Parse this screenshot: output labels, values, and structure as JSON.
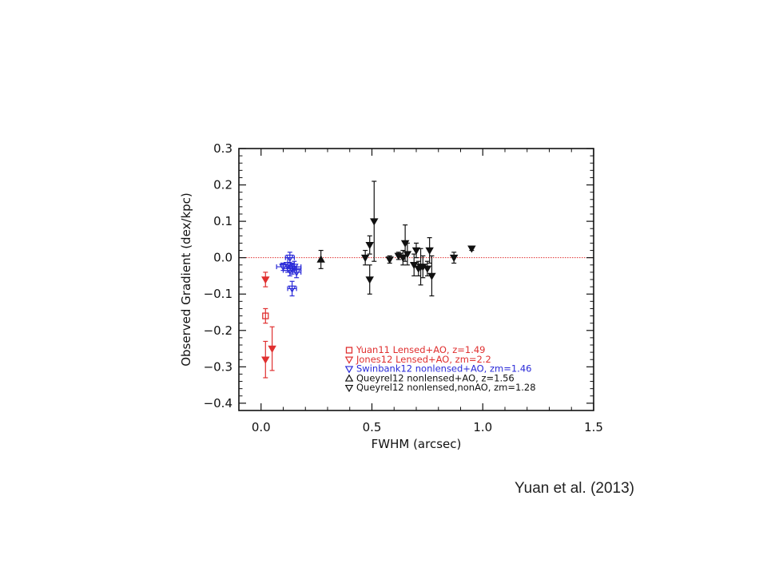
{
  "citation": "Yuan et al. (2013)",
  "chart_data": {
    "type": "scatter",
    "xlabel": "FWHM (arcsec)",
    "ylabel": "Observed Gradient (dex/kpc)",
    "xlim": [
      -0.1,
      1.5
    ],
    "ylim": [
      -0.42,
      0.3
    ],
    "x_ticks": [
      0.0,
      0.5,
      1.0,
      1.5
    ],
    "x_tick_labels": [
      "0.0",
      "0.5",
      "1.0",
      "1.5"
    ],
    "y_ticks": [
      -0.4,
      -0.3,
      -0.2,
      -0.1,
      0.0,
      0.1,
      0.2,
      0.3
    ],
    "y_tick_labels": [
      "−0.4",
      "−0.3",
      "−0.2",
      "−0.1",
      "0.0",
      "0.1",
      "0.2",
      "0.3"
    ],
    "reference_line": {
      "y": 0.0,
      "style": "dotted",
      "color": "#e03030"
    },
    "legend_placement": "lower-right",
    "series": [
      {
        "name": "Yuan11 Lensed+AO, z=1.49",
        "color": "#e03030",
        "marker": "square-open",
        "points": [
          {
            "x": 0.02,
            "y": -0.16,
            "yerr": 0.02,
            "xerr": 0
          }
        ]
      },
      {
        "name": "Jones12 Lensed+AO, zm=2.2",
        "color": "#e03030",
        "marker": "triangle-down-filled",
        "points": [
          {
            "x": 0.02,
            "y": -0.06,
            "yerr": 0.02,
            "xerr": 0
          },
          {
            "x": 0.02,
            "y": -0.28,
            "yerr": 0.05,
            "xerr": 0
          },
          {
            "x": 0.05,
            "y": -0.25,
            "yerr": 0.06,
            "xerr": 0
          }
        ]
      },
      {
        "name": "Swinbank12 nonlensed+AO, zm=1.46",
        "color": "#2a2ad8",
        "marker": "triangle-down-open",
        "points": [
          {
            "x": 0.13,
            "y": 0.0,
            "yerr": 0.015,
            "xerr": 0.02
          },
          {
            "x": 0.12,
            "y": -0.02,
            "yerr": 0.02,
            "xerr": 0.03
          },
          {
            "x": 0.15,
            "y": -0.025,
            "yerr": 0.015,
            "xerr": 0.03
          },
          {
            "x": 0.14,
            "y": -0.03,
            "yerr": 0.015,
            "xerr": 0.04
          },
          {
            "x": 0.13,
            "y": -0.035,
            "yerr": 0.015,
            "xerr": 0.03
          },
          {
            "x": 0.1,
            "y": -0.025,
            "yerr": 0.01,
            "xerr": 0.03
          },
          {
            "x": 0.16,
            "y": -0.04,
            "yerr": 0.015,
            "xerr": 0.02
          },
          {
            "x": 0.14,
            "y": -0.085,
            "yerr": 0.02,
            "xerr": 0.02
          }
        ]
      },
      {
        "name": "Queyrel12 nonlensed+AO, z=1.56",
        "color": "#111111",
        "marker": "triangle-up-filled",
        "points": [
          {
            "x": 0.27,
            "y": -0.005,
            "yerr": 0.025,
            "xerr": 0
          }
        ]
      },
      {
        "name": "Queyrel12 nonlensed,nonAO, zm=1.28",
        "color": "#111111",
        "marker": "triangle-down-filled",
        "points": [
          {
            "x": 0.47,
            "y": 0.0,
            "yerr": 0.02,
            "xerr": 0
          },
          {
            "x": 0.49,
            "y": 0.035,
            "yerr": 0.025,
            "xerr": 0
          },
          {
            "x": 0.49,
            "y": -0.06,
            "yerr": 0.04,
            "xerr": 0
          },
          {
            "x": 0.51,
            "y": 0.1,
            "yerr": 0.11,
            "xerr": 0
          },
          {
            "x": 0.58,
            "y": -0.005,
            "yerr": 0.01,
            "xerr": 0
          },
          {
            "x": 0.62,
            "y": 0.005,
            "yerr": 0.01,
            "xerr": 0
          },
          {
            "x": 0.64,
            "y": 0.0,
            "yerr": 0.02,
            "xerr": 0
          },
          {
            "x": 0.65,
            "y": 0.04,
            "yerr": 0.05,
            "xerr": 0
          },
          {
            "x": 0.66,
            "y": 0.01,
            "yerr": 0.03,
            "xerr": 0
          },
          {
            "x": 0.69,
            "y": -0.02,
            "yerr": 0.03,
            "xerr": 0
          },
          {
            "x": 0.7,
            "y": 0.02,
            "yerr": 0.02,
            "xerr": 0
          },
          {
            "x": 0.71,
            "y": -0.03,
            "yerr": 0.02,
            "xerr": 0
          },
          {
            "x": 0.72,
            "y": -0.025,
            "yerr": 0.05,
            "xerr": 0
          },
          {
            "x": 0.73,
            "y": -0.025,
            "yerr": 0.03,
            "xerr": 0
          },
          {
            "x": 0.75,
            "y": -0.03,
            "yerr": 0.02,
            "xerr": 0
          },
          {
            "x": 0.76,
            "y": 0.02,
            "yerr": 0.035,
            "xerr": 0
          },
          {
            "x": 0.77,
            "y": -0.05,
            "yerr": 0.055,
            "xerr": 0
          },
          {
            "x": 0.87,
            "y": 0.0,
            "yerr": 0.015,
            "xerr": 0
          },
          {
            "x": 0.95,
            "y": 0.025,
            "yerr": 0.005,
            "xerr": 0
          }
        ]
      }
    ]
  }
}
